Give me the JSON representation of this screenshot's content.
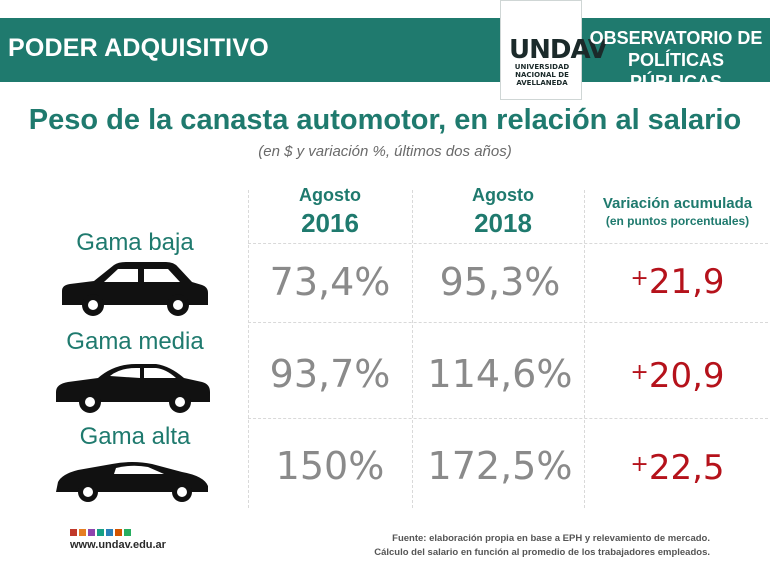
{
  "header": {
    "left_title": "PODER ADQUISITIVO",
    "logo_mark": "UNDAV",
    "logo_sub": [
      "UNIVERSIDAD",
      "NACIONAL DE",
      "AVELLANEDA"
    ],
    "right_title_line1": "OBSERVATORIO DE",
    "right_title_line2": "POLÍTICAS PÚBLICAS",
    "band_color": "#1f7a6e"
  },
  "title": "Peso de la canasta automotor, en relación al salario",
  "subtitle": "(en $ y variación %, últimos dos años)",
  "columns": {
    "c2016": {
      "line1": "Agosto",
      "line2": "2016"
    },
    "c2018": {
      "line1": "Agosto",
      "line2": "2018"
    },
    "variation": {
      "line1": "Variación acumulada",
      "line2": "(en puntos porcentuales)"
    }
  },
  "rows": [
    {
      "label": "Gama baja",
      "car_icon": "sedan-car-icon",
      "v2016": "73,4%",
      "v2018": "95,3%",
      "variation_sign": "+",
      "variation": "21,9"
    },
    {
      "label": "Gama media",
      "car_icon": "midsize-car-icon",
      "v2016": "93,7%",
      "v2018": "114,6%",
      "variation_sign": "+",
      "variation": "20,9"
    },
    {
      "label": "Gama alta",
      "car_icon": "sports-car-icon",
      "v2016": "150%",
      "v2018": "172,5%",
      "variation_sign": "+",
      "variation": "22,5"
    }
  ],
  "footer": {
    "url": "www.undav.edu.ar",
    "source_line1": "Fuente: elaboración propia en base a EPH y relevamiento de mercado.",
    "source_line2": "Cálculo del salario en función al promedio de los trabajadores empleados.",
    "dot_colors": [
      "#c0392b",
      "#e67e22",
      "#8e44ad",
      "#16a085",
      "#2980b9",
      "#d35400",
      "#27ae60"
    ]
  },
  "colors": {
    "accent": "#1f7a6e",
    "value_gray": "#8a8a8a",
    "variation_red": "#b5121b"
  }
}
